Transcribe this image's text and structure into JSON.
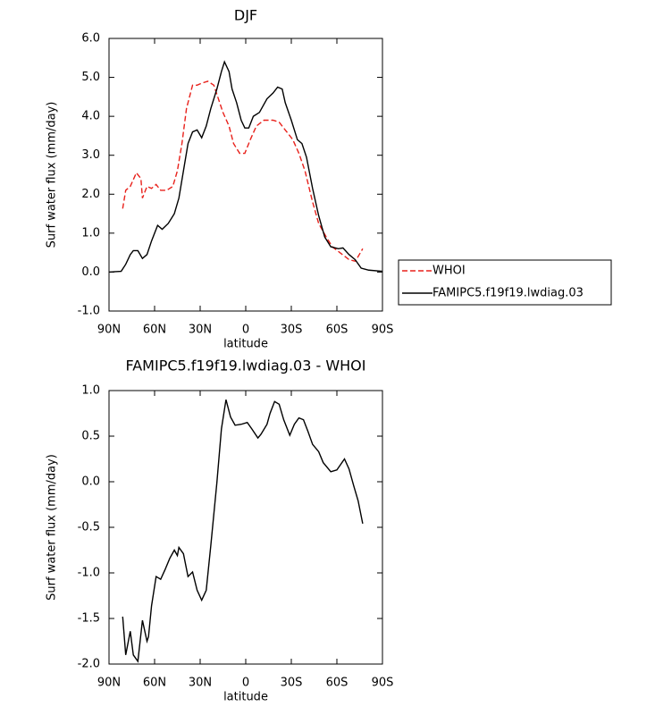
{
  "chart_data": [
    {
      "type": "line",
      "title": "DJF",
      "xlabel": "latitude",
      "ylabel": "Surf water flux (mm/day)",
      "xlim": [
        90,
        -90
      ],
      "xticks": [
        {
          "value": 90,
          "label": "90N"
        },
        {
          "value": 60,
          "label": "60N"
        },
        {
          "value": 30,
          "label": "30N"
        },
        0,
        {
          "value": -30,
          "label": "30S"
        },
        {
          "value": -60,
          "label": "60S"
        },
        {
          "value": -90,
          "label": "90S"
        }
      ],
      "ylim": [
        -1,
        6
      ],
      "yticks": [
        {
          "value": -1,
          "label": "-1.0"
        },
        {
          "value": 0,
          "label": "0.0"
        },
        {
          "value": 1,
          "label": "1.0"
        },
        {
          "value": 2,
          "label": "2.0"
        },
        {
          "value": 3,
          "label": "3.0"
        },
        {
          "value": 4,
          "label": "4.0"
        },
        {
          "value": 5,
          "label": "5.0"
        },
        {
          "value": 6,
          "label": "6.0"
        }
      ],
      "legend": "outside right",
      "series": [
        {
          "name": "WHOI",
          "color": "#e8211b",
          "linestyle": "dashed",
          "x": [
            81,
            79,
            76,
            72,
            69,
            68,
            65,
            62,
            59,
            56,
            52,
            48,
            45,
            42,
            39,
            35,
            32,
            29,
            25,
            21,
            18,
            15,
            11,
            8,
            4,
            0.6,
            -3,
            -7,
            -12,
            -18,
            -22,
            -26,
            -31,
            -35,
            -39,
            -44,
            -48,
            -53,
            -57,
            -62,
            -68,
            -72,
            -74,
            -77
          ],
          "values": [
            1.63,
            2.1,
            2.2,
            2.55,
            2.4,
            1.9,
            2.2,
            2.15,
            2.25,
            2.1,
            2.1,
            2.2,
            2.6,
            3.3,
            4.2,
            4.8,
            4.8,
            4.85,
            4.9,
            4.8,
            4.45,
            4.1,
            3.75,
            3.3,
            3.05,
            3.05,
            3.4,
            3.75,
            3.9,
            3.9,
            3.85,
            3.65,
            3.4,
            3.05,
            2.6,
            1.8,
            1.25,
            0.9,
            0.65,
            0.5,
            0.32,
            0.28,
            0.4,
            0.6
          ]
        },
        {
          "name": "FAMIPC5.f19f19.lwdiag.03",
          "color": "#000000",
          "linestyle": "solid",
          "x": [
            90,
            82,
            79,
            76,
            74,
            71,
            68,
            65,
            62,
            58,
            55,
            51,
            47,
            44,
            41,
            38,
            35,
            32,
            29,
            26,
            23,
            19,
            16,
            14,
            11,
            9,
            6,
            3,
            0.6,
            -2,
            -5,
            -9,
            -14,
            -18,
            -21,
            -24,
            -26,
            -30,
            -34,
            -37,
            -40,
            -44,
            -48,
            -52,
            -56,
            -61,
            -64,
            -68,
            -72,
            -76,
            -81,
            -90
          ],
          "values": [
            0.0,
            0.02,
            0.2,
            0.45,
            0.55,
            0.55,
            0.35,
            0.45,
            0.8,
            1.2,
            1.1,
            1.25,
            1.5,
            1.9,
            2.6,
            3.3,
            3.6,
            3.65,
            3.45,
            3.75,
            4.2,
            4.7,
            5.15,
            5.4,
            5.15,
            4.7,
            4.35,
            3.9,
            3.7,
            3.7,
            4.0,
            4.1,
            4.45,
            4.6,
            4.75,
            4.7,
            4.35,
            3.9,
            3.4,
            3.3,
            2.95,
            2.15,
            1.45,
            0.9,
            0.65,
            0.6,
            0.62,
            0.45,
            0.32,
            0.1,
            0.05,
            0.02
          ]
        }
      ]
    },
    {
      "type": "line",
      "title": "FAMIPC5.f19f19.lwdiag.03 - WHOI",
      "xlabel": "latitude",
      "ylabel": "Surf water flux (mm/day)",
      "xlim": [
        90,
        -90
      ],
      "xticks": [
        {
          "value": 90,
          "label": "90N"
        },
        {
          "value": 60,
          "label": "60N"
        },
        {
          "value": 30,
          "label": "30N"
        },
        0,
        {
          "value": -30,
          "label": "30S"
        },
        {
          "value": -60,
          "label": "60S"
        },
        {
          "value": -90,
          "label": "90S"
        }
      ],
      "ylim": [
        -2,
        1
      ],
      "yticks": [
        {
          "value": -2,
          "label": "-2.0"
        },
        {
          "value": -1.5,
          "label": "-1.5"
        },
        {
          "value": -1,
          "label": "-1.0"
        },
        {
          "value": -0.5,
          "label": "-0.5"
        },
        {
          "value": 0,
          "label": "0.0"
        },
        {
          "value": 0.5,
          "label": "0.5"
        },
        {
          "value": 1,
          "label": "1.0"
        }
      ],
      "series": [
        {
          "color": "#000000",
          "linestyle": "solid",
          "x": [
            81,
            79,
            76,
            74,
            71,
            68,
            65,
            64,
            62,
            59,
            56,
            53,
            50,
            47,
            45,
            44,
            41,
            38,
            35,
            32,
            29,
            26,
            23,
            19,
            16,
            13,
            10,
            7,
            3,
            -1,
            -4,
            -8,
            -10,
            -14,
            -16,
            -19,
            -22,
            -25,
            -29,
            -32,
            -35,
            -38,
            -41,
            -44,
            -48,
            -51,
            -56,
            -60,
            -65,
            -68,
            -71,
            -74,
            -77
          ],
          "values": [
            -1.48,
            -1.9,
            -1.64,
            -1.9,
            -1.97,
            -1.52,
            -1.75,
            -1.7,
            -1.36,
            -1.04,
            -1.07,
            -0.96,
            -0.84,
            -0.75,
            -0.81,
            -0.72,
            -0.79,
            -1.04,
            -0.99,
            -1.19,
            -1.3,
            -1.19,
            -0.7,
            -0.01,
            0.58,
            0.9,
            0.71,
            0.62,
            0.63,
            0.65,
            0.58,
            0.48,
            0.52,
            0.63,
            0.75,
            0.88,
            0.85,
            0.68,
            0.51,
            0.63,
            0.7,
            0.68,
            0.55,
            0.41,
            0.33,
            0.21,
            0.11,
            0.13,
            0.25,
            0.14,
            -0.04,
            -0.21,
            -0.46
          ]
        }
      ]
    }
  ]
}
